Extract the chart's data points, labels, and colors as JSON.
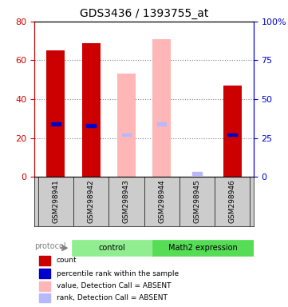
{
  "title": "GDS3436 / 1393755_at",
  "samples": [
    "GSM298941",
    "GSM298942",
    "GSM298943",
    "GSM298944",
    "GSM298945",
    "GSM298946"
  ],
  "groups": [
    "control",
    "control",
    "control",
    "Math2 expression",
    "Math2 expression",
    "Math2 expression"
  ],
  "group_colors": [
    "#90ee90",
    "#90ee90",
    "#90ee90",
    "#00cc00",
    "#00cc00",
    "#00cc00"
  ],
  "ylim_left": [
    0,
    80
  ],
  "ylim_right": [
    0,
    100
  ],
  "yticks_left": [
    0,
    20,
    40,
    60,
    80
  ],
  "yticks_right": [
    0,
    25,
    50,
    75,
    100
  ],
  "left_color": "#cc0000",
  "right_color": "#0000cc",
  "absent_value_color": "#ffb6b6",
  "absent_rank_color": "#b8b8ff",
  "bar_width": 0.35,
  "count_values": [
    65,
    69,
    null,
    null,
    null,
    47
  ],
  "percentile_values": [
    34,
    33,
    null,
    null,
    null,
    27
  ],
  "absent_value_values": [
    null,
    null,
    53,
    71,
    null,
    null
  ],
  "absent_rank_values": [
    null,
    null,
    27,
    34,
    2,
    null
  ],
  "legend_items": [
    {
      "color": "#cc0000",
      "marker": "s",
      "label": "count"
    },
    {
      "color": "#0000cc",
      "marker": "s",
      "label": "percentile rank within the sample"
    },
    {
      "color": "#ffb6b6",
      "marker": "s",
      "label": "value, Detection Call = ABSENT"
    },
    {
      "color": "#b8b8ff",
      "marker": "s",
      "label": "rank, Detection Call = ABSENT"
    }
  ],
  "protocol_label": "protocol",
  "group_label_1": "control",
  "group_label_2": "Math2 expression",
  "background_color": "#ffffff",
  "plot_bg_color": "#ffffff",
  "grid_color": "#808080",
  "sample_area_color": "#cccccc"
}
